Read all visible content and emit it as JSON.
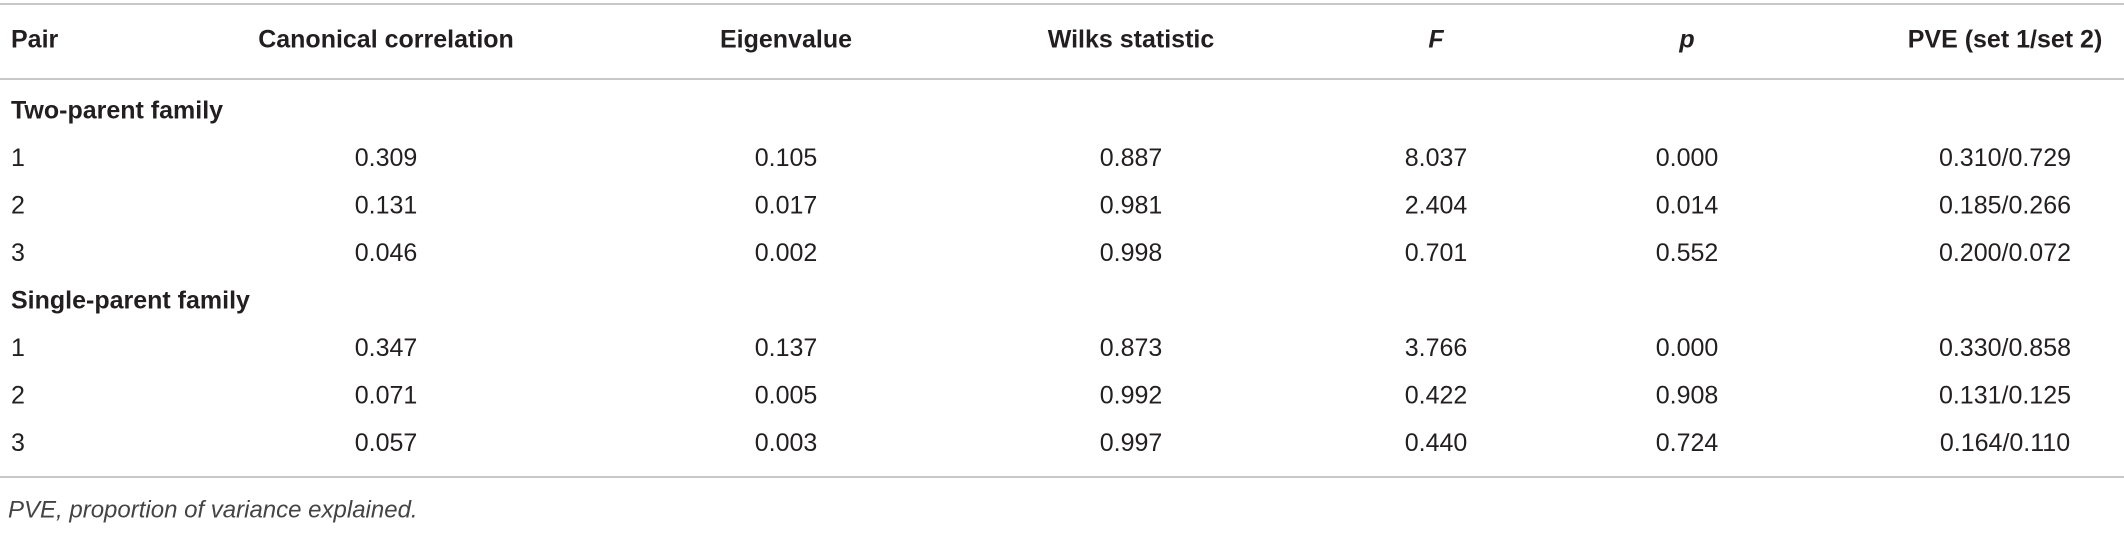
{
  "table": {
    "header": [
      "Pair",
      "Canonical correlation",
      "Eigenvalue",
      "Wilks statistic",
      "F",
      "p",
      "PVE (set 1/set 2)"
    ],
    "groups": [
      {
        "label": "Two-parent family",
        "rows": [
          [
            "1",
            "0.309",
            "0.105",
            "0.887",
            "8.037",
            "0.000",
            "0.310/0.729"
          ],
          [
            "2",
            "0.131",
            "0.017",
            "0.981",
            "2.404",
            "0.014",
            "0.185/0.266"
          ],
          [
            "3",
            "0.046",
            "0.002",
            "0.998",
            "0.701",
            "0.552",
            "0.200/0.072"
          ]
        ]
      },
      {
        "label": "Single-parent family",
        "rows": [
          [
            "1",
            "0.347",
            "0.137",
            "0.873",
            "3.766",
            "0.000",
            "0.330/0.858"
          ],
          [
            "2",
            "0.071",
            "0.005",
            "0.992",
            "0.422",
            "0.908",
            "0.131/0.125"
          ],
          [
            "3",
            "0.057",
            "0.003",
            "0.997",
            "0.440",
            "0.724",
            "0.164/0.110"
          ]
        ]
      }
    ]
  },
  "footnote": "PVE, proportion of variance explained."
}
